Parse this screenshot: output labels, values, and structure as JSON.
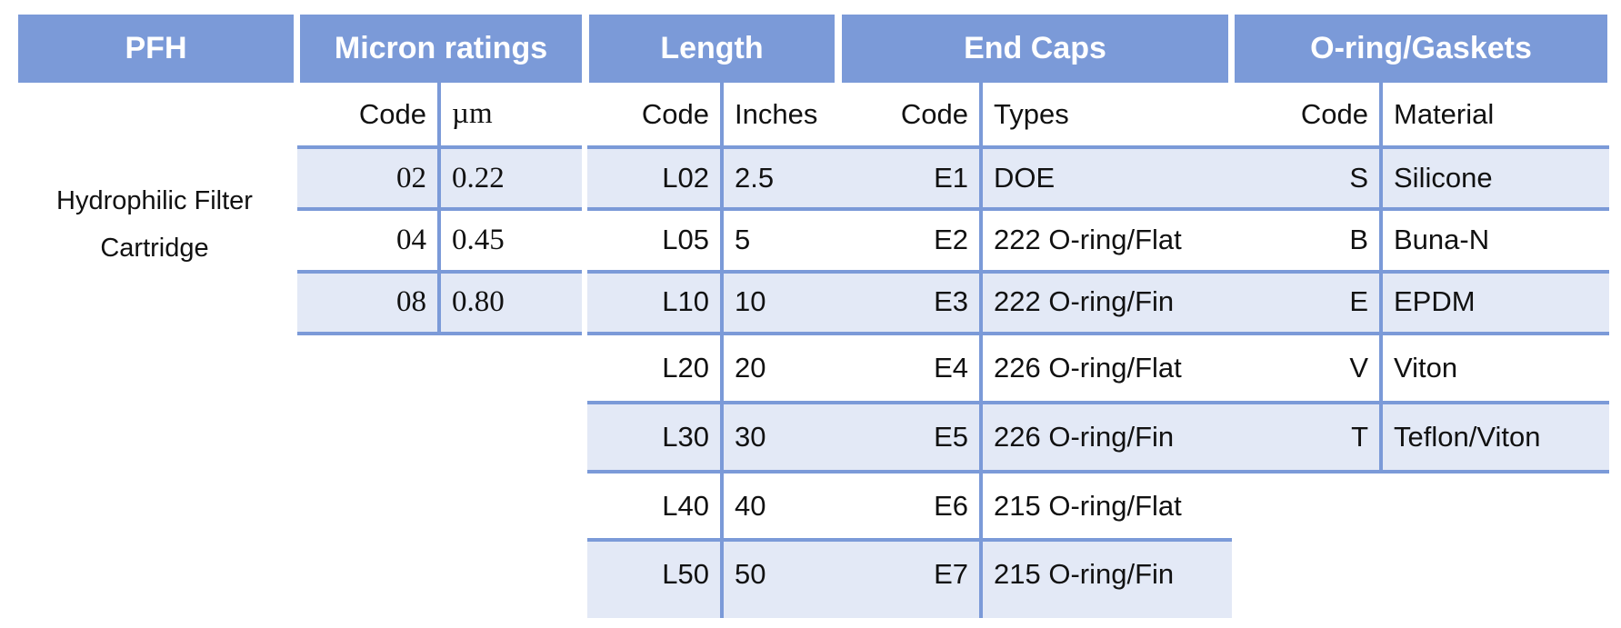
{
  "headers": {
    "pfh": "PFH",
    "micron": "Micron ratings",
    "length": "Length",
    "end_caps": "End Caps",
    "oring": "O-ring/Gaskets"
  },
  "description": [
    "Hydrophilic Filter",
    "Cartridge"
  ],
  "micron": {
    "code_header": "Code",
    "value_header": "µm",
    "rows": [
      {
        "code": "02",
        "value": "0.22"
      },
      {
        "code": "04",
        "value": "0.45"
      },
      {
        "code": "08",
        "value": "0.80"
      }
    ]
  },
  "length": {
    "code_header": "Code",
    "value_header": "Inches",
    "rows": [
      {
        "code": "L02",
        "value": "2.5"
      },
      {
        "code": "L05",
        "value": "5"
      },
      {
        "code": "L10",
        "value": "10"
      },
      {
        "code": "L20",
        "value": "20"
      },
      {
        "code": "L30",
        "value": "30"
      },
      {
        "code": "L40",
        "value": "40"
      },
      {
        "code": "L50",
        "value": "50"
      }
    ]
  },
  "end_caps": {
    "code_header": "Code",
    "value_header": "Types",
    "rows": [
      {
        "code": "E1",
        "value": "DOE"
      },
      {
        "code": "E2",
        "value": "222 O-ring/Flat"
      },
      {
        "code": "E3",
        "value": "222 O-ring/Fin"
      },
      {
        "code": "E4",
        "value": "226 O-ring/Flat"
      },
      {
        "code": "E5",
        "value": "226 O-ring/Fin"
      },
      {
        "code": "E6",
        "value": "215 O-ring/Flat"
      },
      {
        "code": "E7",
        "value": "215 O-ring/Fin"
      }
    ]
  },
  "oring": {
    "code_header": "Code",
    "value_header": "Material",
    "rows": [
      {
        "code": "S",
        "value": "Silicone"
      },
      {
        "code": "B",
        "value": "Buna-N"
      },
      {
        "code": "E",
        "value": "EPDM"
      },
      {
        "code": "V",
        "value": "Viton"
      },
      {
        "code": "T",
        "value": "Teflon/Viton"
      }
    ]
  },
  "colors": {
    "header_bg": "#7b9ad8",
    "band_bg": "#e3e9f6",
    "rule": "#7b9ad8"
  }
}
